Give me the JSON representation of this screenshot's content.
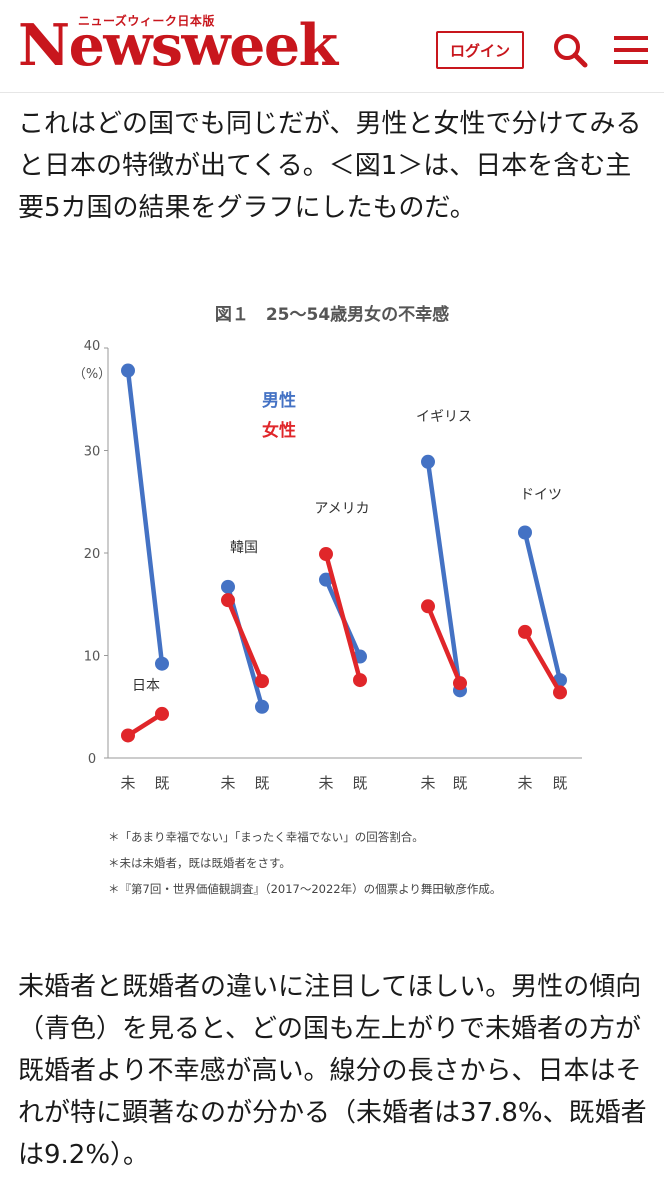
{
  "header": {
    "logo_text": "Newsweek",
    "logo_subtitle": "ニューズウィーク日本版",
    "login_label": "ログイン",
    "search_icon": "search-icon",
    "menu_icon": "hamburger-menu-icon",
    "brand_color": "#c8161d"
  },
  "article": {
    "paragraph1": "これはどの国でも同じだが、男性と女性で分けてみると日本の特徴が出てくる。＜図1＞は、日本を含む主要5カ国の結果をグラフにしたものだ。",
    "paragraph2": "未婚者と既婚者の違いに注目してほしい。男性の傾向（青色）を見ると、どの国も左上がりで未婚者の方が既婚者より不幸感が高い。線分の長さから、日本はそれが特に顕著なのが分かる（未婚者は37.8%、既婚者は9.2%）。"
  },
  "chart_data": {
    "type": "line",
    "title": "図１　25～54歳男女の不幸感",
    "ylabel": "（%）",
    "ylim": [
      0,
      40
    ],
    "yticks": [
      "0",
      "10",
      "20",
      "30",
      "40"
    ],
    "x_labels": [
      "未",
      "既"
    ],
    "legend": [
      "男性",
      "女性"
    ],
    "legend_placement": "top-left",
    "colors": {
      "男性": "#4472c4",
      "女性": "#e0262a"
    },
    "groups": [
      {
        "name": "日本",
        "男性": [
          37.8,
          9.2
        ],
        "女性": [
          2.2,
          4.3
        ]
      },
      {
        "name": "韓国",
        "男性": [
          16.7,
          5.0
        ],
        "女性": [
          15.4,
          7.5
        ]
      },
      {
        "name": "アメリカ",
        "男性": [
          17.4,
          9.9
        ],
        "女性": [
          19.9,
          7.6
        ]
      },
      {
        "name": "イギリス",
        "男性": [
          28.9,
          6.6
        ],
        "女性": [
          14.8,
          7.3
        ]
      },
      {
        "name": "ドイツ",
        "男性": [
          22.0,
          7.6
        ],
        "女性": [
          12.3,
          6.4
        ]
      }
    ],
    "notes": [
      "＊「あまり幸福でない」「まったく幸福でない」の回答割合。",
      "＊未は未婚者，既は既婚者をさす。",
      "＊『第7回・世界価値観調査』（2017～2022年）の個票より舞田敏彦作成。"
    ]
  }
}
